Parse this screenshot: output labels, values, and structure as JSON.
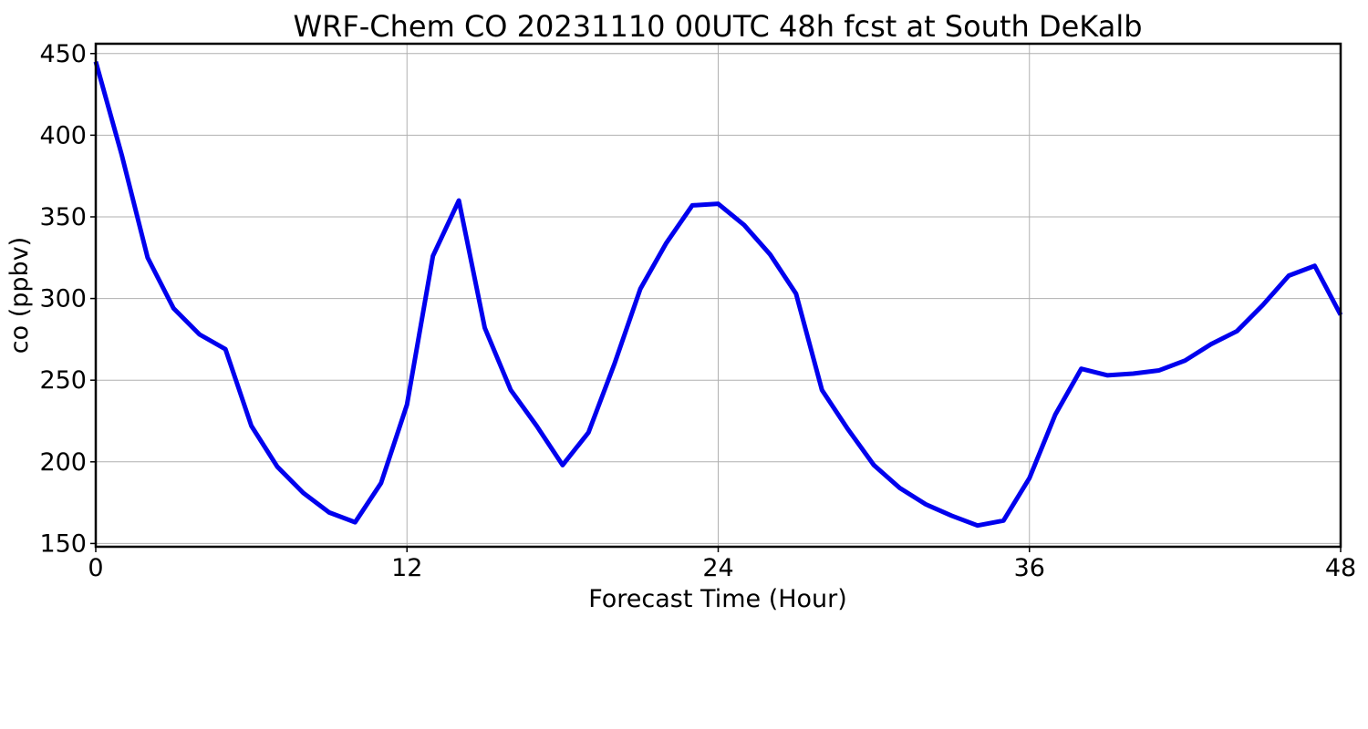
{
  "chart_data": {
    "type": "line",
    "title": "WRF-Chem CO  20231110 00UTC 48h fcst at South DeKalb",
    "xlabel": "Forecast Time (Hour)",
    "ylabel": "co  (ppbv)",
    "xlim": [
      0,
      48
    ],
    "ylim": [
      148,
      456
    ],
    "xticks": [
      0,
      12,
      24,
      36,
      48
    ],
    "yticks": [
      150,
      200,
      250,
      300,
      350,
      400,
      450
    ],
    "grid": true,
    "legend": "none",
    "series": [
      {
        "color": "#0000ee",
        "x": [
          0,
          1,
          2,
          3,
          4,
          5,
          6,
          7,
          8,
          9,
          10,
          11,
          12,
          13,
          14,
          15,
          16,
          17,
          18,
          19,
          20,
          21,
          22,
          23,
          24,
          25,
          26,
          27,
          28,
          29,
          30,
          31,
          32,
          33,
          34,
          35,
          36,
          37,
          38,
          39,
          40,
          41,
          42,
          43,
          44,
          45,
          46,
          47,
          48
        ],
        "values": [
          445,
          388,
          325,
          294,
          278,
          269,
          222,
          197,
          181,
          169,
          163,
          187,
          235,
          326,
          360,
          282,
          244,
          222,
          198,
          218,
          260,
          306,
          334,
          357,
          358,
          345,
          327,
          303,
          244,
          220,
          198,
          184,
          174,
          167,
          161,
          164,
          190,
          229,
          257,
          253,
          254,
          256,
          262,
          272,
          280,
          296,
          314,
          320,
          290
        ]
      }
    ]
  }
}
